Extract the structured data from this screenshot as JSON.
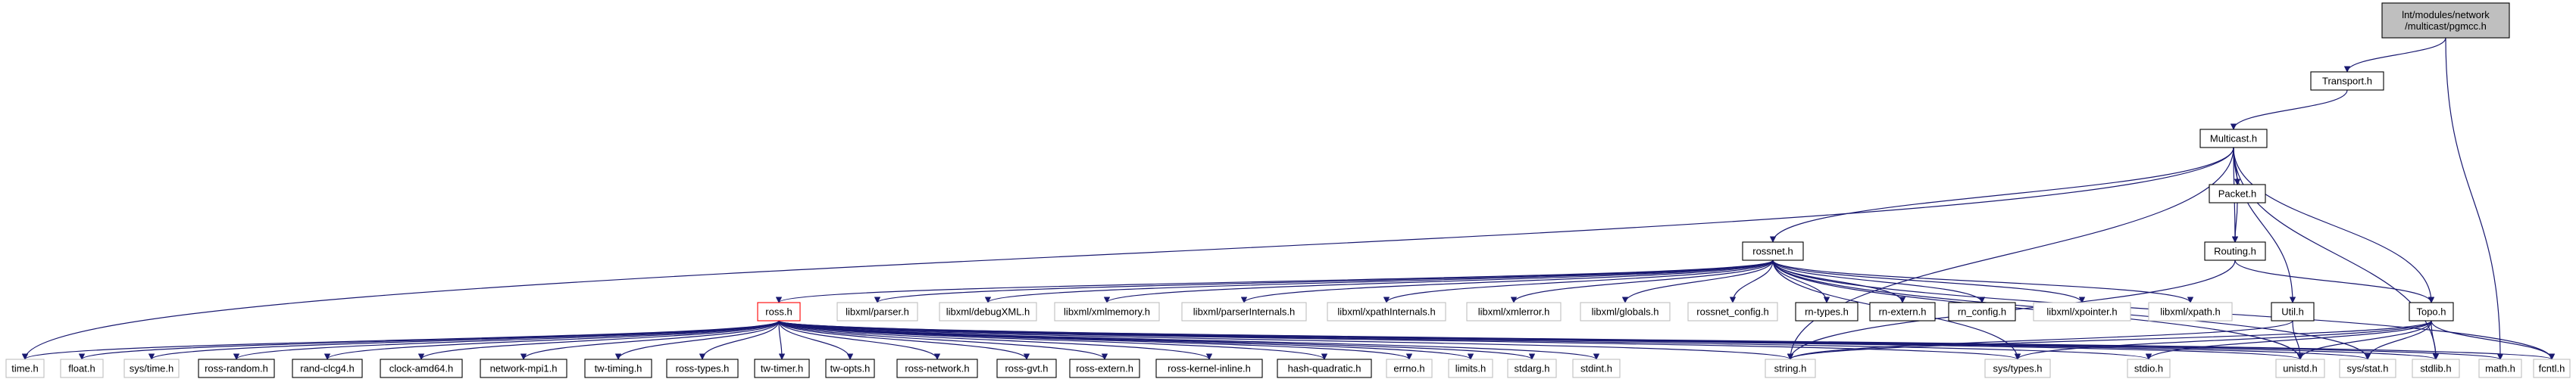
{
  "colors": {
    "edge": "#191970",
    "node_fill": "#ffffff",
    "node_border_dark": "#000000",
    "node_border_light": "#bfbfbf",
    "node_border_red": "#ff0000",
    "root_fill": "#bfbfbf"
  },
  "nodes": [
    {
      "id": "root",
      "label": "lnt/modules/network\n/multicast/pgmcc.h",
      "style": "root"
    },
    {
      "id": "transport",
      "label": "Transport.h",
      "style": "dark"
    },
    {
      "id": "multicast",
      "label": "Multicast.h",
      "style": "dark"
    },
    {
      "id": "packet",
      "label": "Packet.h",
      "style": "dark"
    },
    {
      "id": "routing",
      "label": "Routing.h",
      "style": "dark"
    },
    {
      "id": "rossnet",
      "label": "rossnet.h",
      "style": "dark"
    },
    {
      "id": "ross",
      "label": "ross.h",
      "style": "red"
    },
    {
      "id": "utilh",
      "label": "Util.h",
      "style": "dark"
    },
    {
      "id": "topo",
      "label": "Topo.h",
      "style": "dark"
    },
    {
      "id": "parser",
      "label": "libxml/parser.h",
      "style": "light"
    },
    {
      "id": "debugxml",
      "label": "libxml/debugXML.h",
      "style": "light"
    },
    {
      "id": "xmlmemory",
      "label": "libxml/xmlmemory.h",
      "style": "light"
    },
    {
      "id": "parserint",
      "label": "libxml/parserInternals.h",
      "style": "light"
    },
    {
      "id": "xpathint",
      "label": "libxml/xpathInternals.h",
      "style": "light"
    },
    {
      "id": "xmlerror",
      "label": "libxml/xmlerror.h",
      "style": "light"
    },
    {
      "id": "globals",
      "label": "libxml/globals.h",
      "style": "light"
    },
    {
      "id": "rossnetcfg",
      "label": "rossnet_config.h",
      "style": "light"
    },
    {
      "id": "rntypes",
      "label": "rn-types.h",
      "style": "dark"
    },
    {
      "id": "rnextern",
      "label": "rn-extern.h",
      "style": "dark"
    },
    {
      "id": "rnconfig",
      "label": "rn_config.h",
      "style": "dark"
    },
    {
      "id": "xpointer",
      "label": "libxml/xpointer.h",
      "style": "light"
    },
    {
      "id": "xpath",
      "label": "libxml/xpath.h",
      "style": "light"
    },
    {
      "id": "timeh",
      "label": "time.h",
      "style": "light"
    },
    {
      "id": "floath",
      "label": "float.h",
      "style": "light"
    },
    {
      "id": "systime",
      "label": "sys/time.h",
      "style": "light"
    },
    {
      "id": "rossrandom",
      "label": "ross-random.h",
      "style": "dark"
    },
    {
      "id": "randclcg",
      "label": "rand-clcg4.h",
      "style": "dark"
    },
    {
      "id": "clockamd",
      "label": "clock-amd64.h",
      "style": "dark"
    },
    {
      "id": "netmpi",
      "label": "network-mpi1.h",
      "style": "dark"
    },
    {
      "id": "twtiming",
      "label": "tw-timing.h",
      "style": "dark"
    },
    {
      "id": "rosstypes",
      "label": "ross-types.h",
      "style": "dark"
    },
    {
      "id": "twtimer",
      "label": "tw-timer.h",
      "style": "dark"
    },
    {
      "id": "twopts",
      "label": "tw-opts.h",
      "style": "dark"
    },
    {
      "id": "rossnetwork",
      "label": "ross-network.h",
      "style": "dark"
    },
    {
      "id": "rossgvt",
      "label": "ross-gvt.h",
      "style": "dark"
    },
    {
      "id": "rossextern",
      "label": "ross-extern.h",
      "style": "dark"
    },
    {
      "id": "rosskernel",
      "label": "ross-kernel-inline.h",
      "style": "dark"
    },
    {
      "id": "hashq",
      "label": "hash-quadratic.h",
      "style": "dark"
    },
    {
      "id": "errnoh",
      "label": "errno.h",
      "style": "light"
    },
    {
      "id": "limitsh",
      "label": "limits.h",
      "style": "light"
    },
    {
      "id": "stdargh",
      "label": "stdarg.h",
      "style": "light"
    },
    {
      "id": "stdinth",
      "label": "stdint.h",
      "style": "light"
    },
    {
      "id": "stringh",
      "label": "string.h",
      "style": "light"
    },
    {
      "id": "systypes",
      "label": "sys/types.h",
      "style": "light"
    },
    {
      "id": "stdioh",
      "label": "stdio.h",
      "style": "light"
    },
    {
      "id": "unistdh",
      "label": "unistd.h",
      "style": "light"
    },
    {
      "id": "sysstat",
      "label": "sys/stat.h",
      "style": "light"
    },
    {
      "id": "stdlibh",
      "label": "stdlib.h",
      "style": "light"
    },
    {
      "id": "mathh",
      "label": "math.h",
      "style": "light"
    },
    {
      "id": "fcntlh",
      "label": "fcntl.h",
      "style": "light"
    }
  ],
  "edges": [
    [
      "root",
      "transport"
    ],
    [
      "root",
      "mathh"
    ],
    [
      "transport",
      "multicast"
    ],
    [
      "multicast",
      "packet"
    ],
    [
      "multicast",
      "routing"
    ],
    [
      "multicast",
      "rossnet"
    ],
    [
      "multicast",
      "utilh"
    ],
    [
      "multicast",
      "topo"
    ],
    [
      "multicast",
      "timeh"
    ],
    [
      "multicast",
      "stdlibh"
    ],
    [
      "multicast",
      "stringh"
    ],
    [
      "packet",
      "routing"
    ],
    [
      "routing",
      "topo"
    ],
    [
      "routing",
      "stringh"
    ],
    [
      "rossnet",
      "ross"
    ],
    [
      "rossnet",
      "parser"
    ],
    [
      "rossnet",
      "debugxml"
    ],
    [
      "rossnet",
      "xmlmemory"
    ],
    [
      "rossnet",
      "parserint"
    ],
    [
      "rossnet",
      "xpathint"
    ],
    [
      "rossnet",
      "xmlerror"
    ],
    [
      "rossnet",
      "globals"
    ],
    [
      "rossnet",
      "rossnetcfg"
    ],
    [
      "rossnet",
      "rntypes"
    ],
    [
      "rossnet",
      "rnextern"
    ],
    [
      "rossnet",
      "rnconfig"
    ],
    [
      "rossnet",
      "xpointer"
    ],
    [
      "rossnet",
      "xpath"
    ],
    [
      "rossnet",
      "systypes"
    ],
    [
      "rossnet",
      "unistdh"
    ],
    [
      "rossnet",
      "sysstat"
    ],
    [
      "rossnet",
      "fcntlh"
    ],
    [
      "ross",
      "timeh"
    ],
    [
      "ross",
      "floath"
    ],
    [
      "ross",
      "systime"
    ],
    [
      "ross",
      "rossrandom"
    ],
    [
      "ross",
      "randclcg"
    ],
    [
      "ross",
      "clockamd"
    ],
    [
      "ross",
      "netmpi"
    ],
    [
      "ross",
      "twtiming"
    ],
    [
      "ross",
      "rosstypes"
    ],
    [
      "ross",
      "twtimer"
    ],
    [
      "ross",
      "twopts"
    ],
    [
      "ross",
      "rossnetwork"
    ],
    [
      "ross",
      "rossgvt"
    ],
    [
      "ross",
      "rossextern"
    ],
    [
      "ross",
      "rosskernel"
    ],
    [
      "ross",
      "hashq"
    ],
    [
      "ross",
      "errnoh"
    ],
    [
      "ross",
      "limitsh"
    ],
    [
      "ross",
      "stdargh"
    ],
    [
      "ross",
      "stdinth"
    ],
    [
      "ross",
      "stringh"
    ],
    [
      "ross",
      "systypes"
    ],
    [
      "ross",
      "stdioh"
    ],
    [
      "ross",
      "unistdh"
    ],
    [
      "ross",
      "sysstat"
    ],
    [
      "ross",
      "stdlibh"
    ],
    [
      "ross",
      "mathh"
    ],
    [
      "ross",
      "fcntlh"
    ],
    [
      "utilh",
      "stringh"
    ],
    [
      "utilh",
      "unistdh"
    ],
    [
      "topo",
      "stringh"
    ],
    [
      "topo",
      "systypes"
    ],
    [
      "topo",
      "stdioh"
    ],
    [
      "topo",
      "unistdh"
    ],
    [
      "topo",
      "sysstat"
    ],
    [
      "topo",
      "stdlibh"
    ],
    [
      "topo",
      "fcntlh"
    ]
  ]
}
